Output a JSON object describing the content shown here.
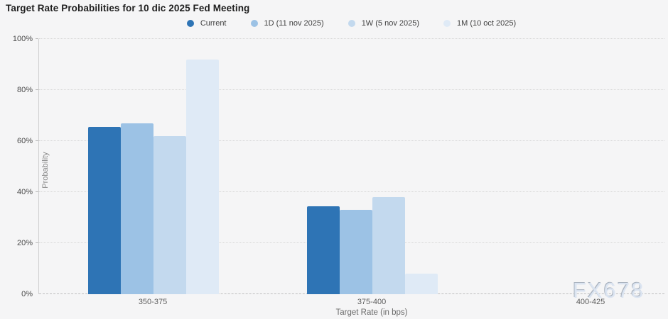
{
  "page": {
    "background": "#f5f5f6"
  },
  "title": "Target Rate Probabilities for 10 dic 2025 Fed Meeting",
  "legend": {
    "items": [
      {
        "label": "Current",
        "color": "#2e74b5"
      },
      {
        "label": "1D (11 nov 2025)",
        "color": "#9cc2e5"
      },
      {
        "label": "1W (5 nov 2025)",
        "color": "#c3d9ee"
      },
      {
        "label": "1M (10 oct 2025)",
        "color": "#dfeaf6"
      }
    ]
  },
  "watermark": "FX678",
  "chart_data": {
    "type": "bar",
    "title": "Target Rate Probabilities for 10 dic 2025 Fed Meeting",
    "xlabel": "Target Rate (in bps)",
    "ylabel": "Probability",
    "categories": [
      "350-375",
      "375-400",
      "400-425"
    ],
    "series": [
      {
        "name": "Current",
        "color": "#2e74b5",
        "values": [
          65.5,
          34.5,
          0
        ]
      },
      {
        "name": "1D (11 nov 2025)",
        "color": "#9cc2e5",
        "values": [
          67.0,
          33.0,
          0
        ]
      },
      {
        "name": "1W (5 nov 2025)",
        "color": "#c3d9ee",
        "values": [
          62.0,
          38.0,
          0
        ]
      },
      {
        "name": "1M (10 oct 2025)",
        "color": "#dfeaf6",
        "values": [
          92.0,
          8.0,
          0
        ]
      }
    ],
    "ylim": [
      0,
      100
    ],
    "yticks": [
      0,
      20,
      40,
      60,
      80,
      100
    ],
    "ytick_labels": [
      "0%",
      "20%",
      "40%",
      "60%",
      "80%",
      "100%"
    ],
    "grid": "horizontal-dotted",
    "legend_position": "top-center"
  }
}
